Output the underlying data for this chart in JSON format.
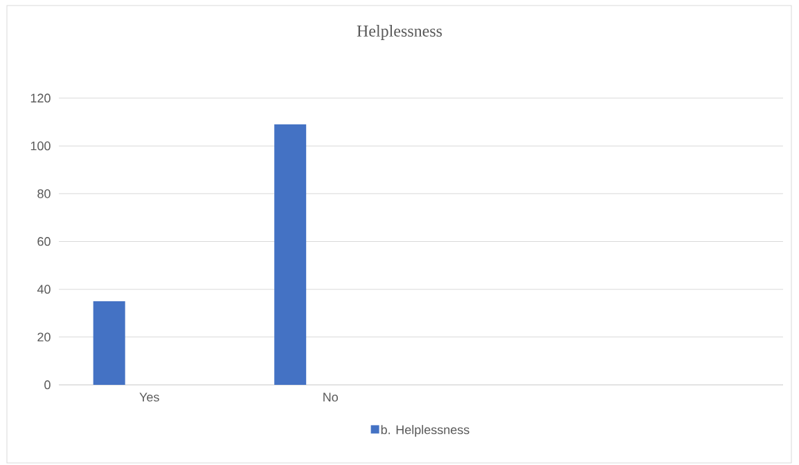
{
  "chart_data": {
    "type": "bar",
    "title": "Helplessness",
    "categories": [
      "Yes",
      "No",
      null,
      null
    ],
    "series": [
      {
        "name": "b. Helplessness",
        "color": "#4472c4",
        "values": [
          35,
          109,
          null,
          null
        ]
      }
    ],
    "ylim": [
      0,
      120
    ],
    "yticks": [
      0,
      20,
      40,
      60,
      80,
      100,
      120
    ],
    "grid": "y",
    "legend": "bottom"
  }
}
